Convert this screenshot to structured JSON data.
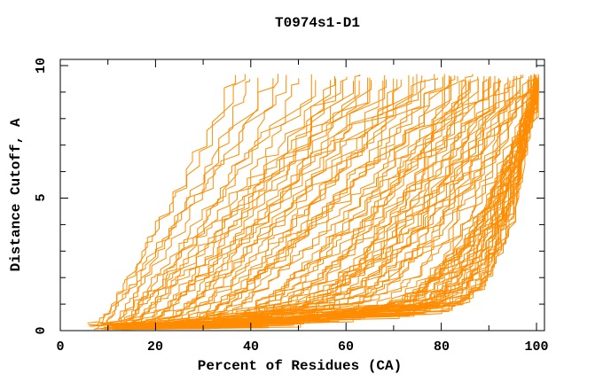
{
  "window": {
    "background": "#ffffff"
  },
  "chart_data": {
    "type": "line",
    "title": "T0974s1-D1",
    "xlabel": "Percent of Residues (CA)",
    "ylabel": "Distance Cutoff, A",
    "xlim": [
      0,
      101.7
    ],
    "ylim": [
      0,
      10.23
    ],
    "x_ticks": [
      0,
      20,
      40,
      60,
      80,
      100
    ],
    "x_minor_step": 10,
    "y_ticks": [
      0,
      5,
      10
    ],
    "y_minor_step": 1,
    "x_tick_labels": [
      "0",
      "20",
      "40",
      "60",
      "80",
      "100"
    ],
    "y_tick_labels": [
      "0",
      "5",
      "10"
    ],
    "grid": false,
    "legend": null,
    "series_color": "#ff8c00",
    "axis_color": "#000000",
    "note": "Each curve is one model: [percent_at_cutoff_0, percent_at_top_cutoff_9.6, shape_exponent]; curves are monotone staircases from bottom-left toward upper-right.",
    "curves": [
      [
        5.5,
        36.5,
        0.55
      ],
      [
        6,
        38,
        0.6
      ],
      [
        6.5,
        40,
        0.5
      ],
      [
        7,
        42,
        0.62
      ],
      [
        7.5,
        44,
        0.55
      ],
      [
        6.5,
        46,
        0.65
      ],
      [
        8,
        48,
        0.5
      ],
      [
        8.5,
        50,
        0.6
      ],
      [
        7,
        52,
        0.55
      ],
      [
        9,
        54,
        0.6
      ],
      [
        8,
        56,
        0.5
      ],
      [
        9,
        57,
        0.62
      ],
      [
        10,
        58,
        0.45
      ],
      [
        8.5,
        59,
        0.55
      ],
      [
        11,
        60,
        0.5
      ],
      [
        9.5,
        61,
        0.6
      ],
      [
        10.5,
        62,
        0.42
      ],
      [
        12,
        63,
        0.5
      ],
      [
        9,
        64,
        0.55
      ],
      [
        11.5,
        65,
        0.45
      ],
      [
        10,
        66,
        0.52
      ],
      [
        12.5,
        67,
        0.4
      ],
      [
        11,
        68,
        0.5
      ],
      [
        13,
        69,
        0.45
      ],
      [
        10.5,
        70,
        0.55
      ],
      [
        12,
        71,
        0.38
      ],
      [
        11.5,
        72,
        0.48
      ],
      [
        13.5,
        73,
        0.42
      ],
      [
        12.5,
        74,
        0.5
      ],
      [
        10,
        75,
        0.36
      ],
      [
        13,
        76,
        0.45
      ],
      [
        11,
        77,
        0.4
      ],
      [
        12,
        78,
        0.48
      ],
      [
        14,
        79,
        0.35
      ],
      [
        9,
        80,
        0.4
      ],
      [
        10,
        80.5,
        0.32
      ],
      [
        11,
        81,
        0.42
      ],
      [
        12,
        82,
        0.28
      ],
      [
        10.5,
        82.5,
        0.38
      ],
      [
        13,
        83,
        0.3
      ],
      [
        9.5,
        83.5,
        0.42
      ],
      [
        11.5,
        84,
        0.26
      ],
      [
        12.5,
        84.5,
        0.36
      ],
      [
        10,
        85,
        0.3
      ],
      [
        13.5,
        85.5,
        0.4
      ],
      [
        11,
        86,
        0.25
      ],
      [
        12,
        86.5,
        0.34
      ],
      [
        14,
        87,
        0.28
      ],
      [
        10.5,
        87.5,
        0.38
      ],
      [
        13,
        88,
        0.24
      ],
      [
        11.5,
        88.5,
        0.32
      ],
      [
        12.5,
        89,
        0.27
      ],
      [
        9.5,
        89.5,
        0.36
      ],
      [
        14.5,
        90,
        0.23
      ],
      [
        11,
        90.5,
        0.3
      ],
      [
        13.5,
        91,
        0.26
      ],
      [
        12,
        91.5,
        0.34
      ],
      [
        10.5,
        92,
        0.22
      ],
      [
        14,
        92.5,
        0.3
      ],
      [
        11.5,
        93,
        0.25
      ],
      [
        13,
        93.5,
        0.32
      ],
      [
        12.5,
        94,
        0.21
      ],
      [
        10,
        94.5,
        0.28
      ],
      [
        14.5,
        95,
        0.24
      ],
      [
        11,
        95.5,
        0.3
      ],
      [
        13.5,
        96,
        0.2
      ],
      [
        12,
        96.5,
        0.27
      ],
      [
        15,
        97,
        0.23
      ],
      [
        10.5,
        97,
        0.3
      ],
      [
        13,
        97.5,
        0.19
      ],
      [
        11.5,
        98,
        0.26
      ],
      [
        14,
        98,
        0.22
      ],
      [
        12.5,
        98.5,
        0.29
      ],
      [
        15,
        99,
        0.18
      ],
      [
        11,
        99,
        0.25
      ],
      [
        13.5,
        99.5,
        0.21
      ],
      [
        12,
        100,
        0.12
      ],
      [
        13,
        99.8,
        0.16
      ],
      [
        14,
        100,
        0.1
      ],
      [
        11.5,
        99.5,
        0.18
      ],
      [
        12.5,
        100.2,
        0.13
      ],
      [
        13.5,
        99.7,
        0.2
      ],
      [
        14.5,
        100,
        0.11
      ],
      [
        12,
        99.9,
        0.15
      ],
      [
        13,
        100.1,
        0.19
      ],
      [
        11,
        99.6,
        0.12
      ],
      [
        14,
        100,
        0.17
      ],
      [
        12.5,
        99.8,
        0.1
      ],
      [
        13.5,
        100,
        0.14
      ],
      [
        15,
        99.9,
        0.18
      ],
      [
        11.5,
        100.1,
        0.12
      ],
      [
        12,
        99.7,
        0.16
      ],
      [
        14.5,
        100,
        0.2
      ],
      [
        13,
        99.5,
        0.11
      ],
      [
        12.5,
        100,
        0.15
      ],
      [
        14,
        99.8,
        0.13
      ],
      [
        11,
        100.2,
        0.17
      ],
      [
        13.5,
        99.9,
        0.1
      ],
      [
        12,
        100,
        0.14
      ],
      [
        15,
        99.6,
        0.18
      ],
      [
        12.5,
        99.8,
        0.12
      ],
      [
        14,
        100.1,
        0.16
      ],
      [
        11.5,
        99.7,
        0.1
      ],
      [
        13,
        100,
        0.19
      ],
      [
        12,
        99.9,
        0.13
      ],
      [
        14.5,
        99.5,
        0.15
      ],
      [
        13.5,
        100,
        0.11
      ],
      [
        11,
        99.8,
        0.17
      ],
      [
        12.5,
        100.2,
        0.14
      ],
      [
        15,
        99.7,
        0.12
      ],
      [
        13,
        99.9,
        0.16
      ],
      [
        12,
        100,
        0.1
      ]
    ]
  }
}
